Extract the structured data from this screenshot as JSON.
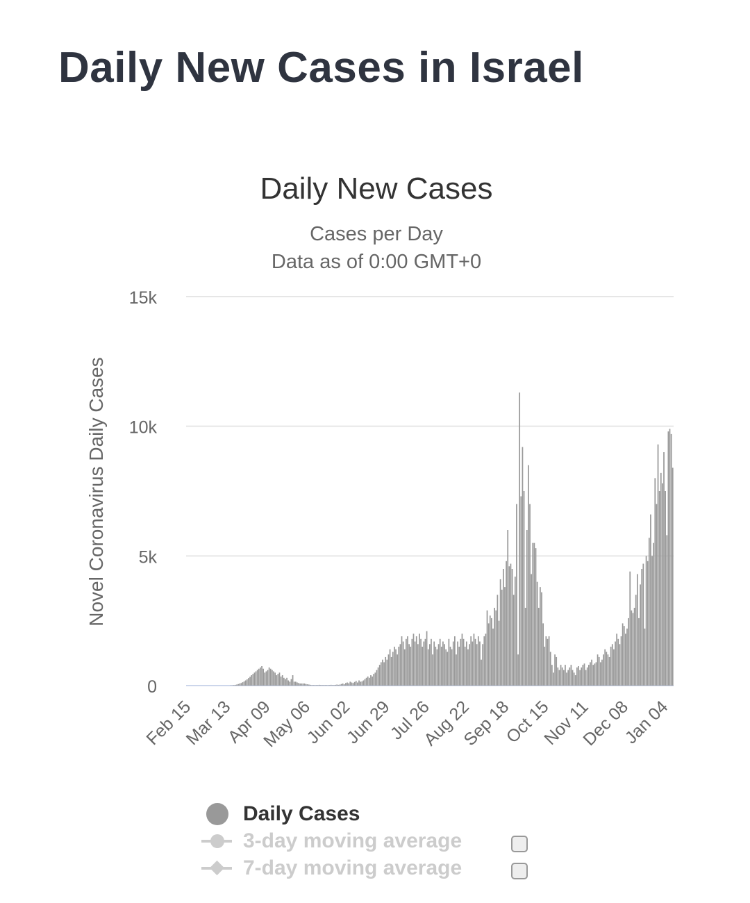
{
  "page": {
    "title": "Daily New Cases in Israel"
  },
  "legend": {
    "items": [
      {
        "label": "Daily Cases",
        "active": true
      },
      {
        "label": "3-day moving average",
        "active": false,
        "checked": false
      },
      {
        "label": "7-day moving average",
        "active": false,
        "checked": false
      }
    ]
  },
  "colors": {
    "bars": "#999999",
    "title": "#2f3440",
    "inactive": "#cccccc"
  },
  "chart_data": {
    "type": "bar",
    "title": "Daily New Cases",
    "subtitle_lines": [
      "Cases per Day",
      "Data as of 0:00 GMT+0"
    ],
    "ylabel": "Novel Coronavirus Daily Cases",
    "xlabel": "",
    "ylim": [
      0,
      15000
    ],
    "yticks": [
      0,
      5000,
      10000,
      15000
    ],
    "ytick_labels": [
      "0",
      "5k",
      "10k",
      "15k"
    ],
    "xtick_labels": [
      "Feb 15",
      "Mar 13",
      "Apr 09",
      "May 06",
      "Jun 02",
      "Jun 29",
      "Jul 26",
      "Aug 22",
      "Sep 18",
      "Oct 15",
      "Nov 11",
      "Dec 08",
      "Jan 04"
    ],
    "xtick_day_interval": 27,
    "grid": true,
    "series": [
      {
        "name": "Daily Cases",
        "values": [
          0,
          0,
          0,
          0,
          0,
          0,
          0,
          0,
          0,
          0,
          0,
          0,
          0,
          0,
          0,
          0,
          0,
          0,
          0,
          0,
          0,
          0,
          0,
          0,
          0,
          0,
          0,
          0,
          0,
          0,
          10,
          10,
          20,
          30,
          40,
          60,
          80,
          100,
          130,
          160,
          200,
          240,
          290,
          340,
          400,
          450,
          500,
          550,
          600,
          650,
          700,
          750,
          650,
          500,
          550,
          600,
          700,
          650,
          600,
          550,
          500,
          400,
          450,
          500,
          350,
          400,
          300,
          250,
          300,
          200,
          150,
          250,
          400,
          150,
          150,
          120,
          100,
          80,
          80,
          80,
          80,
          60,
          50,
          40,
          30,
          20,
          20,
          20,
          20,
          20,
          30,
          20,
          20,
          20,
          20,
          20,
          20,
          20,
          30,
          20,
          20,
          30,
          40,
          30,
          40,
          60,
          80,
          50,
          100,
          120,
          90,
          150,
          120,
          100,
          140,
          180,
          120,
          200,
          150,
          160,
          200,
          250,
          300,
          350,
          300,
          400,
          350,
          450,
          500,
          600,
          700,
          800,
          900,
          1000,
          900,
          1100,
          1000,
          1200,
          1400,
          1100,
          1300,
          1500,
          1400,
          1200,
          1500,
          1600,
          1900,
          1700,
          1400,
          1800,
          1900,
          1600,
          1500,
          1800,
          2000,
          1700,
          1900,
          1600,
          2000,
          1800,
          1500,
          1700,
          1800,
          2100,
          1400,
          1600,
          1800,
          1200,
          1700,
          1500,
          1400,
          1600,
          1800,
          1500,
          1700,
          1600,
          1400,
          1300,
          1800,
          1500,
          1400,
          1700,
          1900,
          1200,
          1700,
          1500,
          1800,
          2000,
          1800,
          1500,
          1700,
          1400,
          1600,
          1900,
          1700,
          2000,
          1800,
          1600,
          1900,
          1700,
          1000,
          1600,
          1900,
          2000,
          2900,
          2400,
          2700,
          2600,
          2200,
          3000,
          2900,
          3500,
          2500,
          4100,
          3700,
          4500,
          3800,
          4800,
          6000,
          4600,
          4700,
          4500,
          3500,
          4200,
          7000,
          1200,
          11300,
          7300,
          9200,
          7500,
          3000,
          6000,
          8500,
          7000,
          4300,
          5500,
          5500,
          5300,
          4000,
          3000,
          3800,
          3600,
          2400,
          1500,
          1900,
          1800,
          1900,
          1300,
          800,
          500,
          1200,
          1100,
          700,
          600,
          800,
          700,
          600,
          800,
          500,
          600,
          700,
          800,
          600,
          500,
          400,
          700,
          750,
          600,
          700,
          800,
          850,
          600,
          700,
          800,
          900,
          1000,
          800,
          850,
          900,
          1200,
          1100,
          900,
          1000,
          1200,
          1400,
          1300,
          1200,
          1100,
          1500,
          1600,
          1400,
          1700,
          2000,
          1800,
          1600,
          1900,
          2400,
          2300,
          2000,
          2200,
          2600,
          4400,
          2900,
          2800,
          3000,
          3500,
          4300,
          2600,
          3900,
          4500,
          4700,
          2200,
          5000,
          4800,
          5700,
          6600,
          5000,
          5500,
          8000,
          7000,
          9300,
          7500,
          8200,
          7800,
          9000,
          7500,
          5800,
          9800,
          9900,
          9700,
          8400
        ]
      }
    ]
  }
}
